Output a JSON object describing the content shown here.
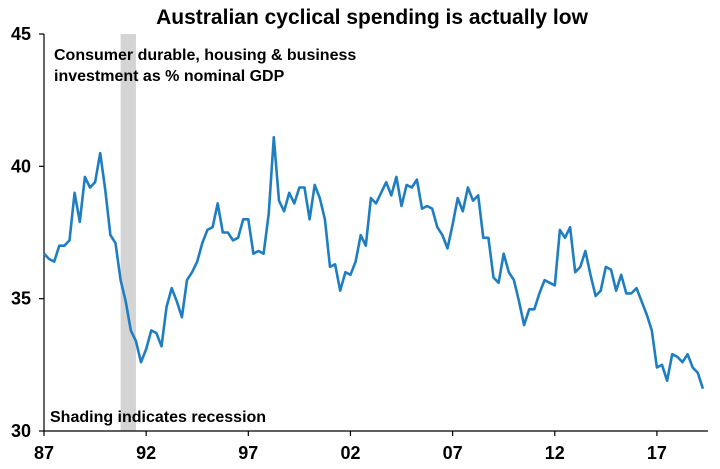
{
  "chart_data": {
    "type": "line",
    "title": "Australian cyclical spending is actually low",
    "subtitle_lines": [
      "Consumer durable, housing & business",
      "investment as %  nominal GDP"
    ],
    "xlabel": "",
    "ylabel": "",
    "x_ticks": [
      "87",
      "92",
      "97",
      "02",
      "07",
      "12",
      "17"
    ],
    "x_tick_years": [
      1987,
      1992,
      1997,
      2002,
      2007,
      2012,
      2017
    ],
    "xlim": [
      1987,
      2019.5
    ],
    "ylim": [
      30,
      45
    ],
    "y_ticks": [
      30,
      35,
      40,
      45
    ],
    "grid": false,
    "recession_band": [
      1990.75,
      1991.5
    ],
    "annotation": "Shading indicates recession",
    "line_color": "#1f7ec2",
    "shade_color": "#d4d4d4",
    "series": [
      {
        "name": "",
        "x": [
          1987.0,
          1987.25,
          1987.5,
          1987.75,
          1988.0,
          1988.25,
          1988.5,
          1988.75,
          1989.0,
          1989.25,
          1989.5,
          1989.75,
          1990.0,
          1990.25,
          1990.5,
          1990.75,
          1991.0,
          1991.25,
          1991.5,
          1991.75,
          1992.0,
          1992.25,
          1992.5,
          1992.75,
          1993.0,
          1993.25,
          1993.5,
          1993.75,
          1994.0,
          1994.25,
          1994.5,
          1994.75,
          1995.0,
          1995.25,
          1995.5,
          1995.75,
          1996.0,
          1996.25,
          1996.5,
          1996.75,
          1997.0,
          1997.25,
          1997.5,
          1997.75,
          1998.0,
          1998.25,
          1998.5,
          1998.75,
          1999.0,
          1999.25,
          1999.5,
          1999.75,
          2000.0,
          2000.25,
          2000.5,
          2000.75,
          2001.0,
          2001.25,
          2001.5,
          2001.75,
          2002.0,
          2002.25,
          2002.5,
          2002.75,
          2003.0,
          2003.25,
          2003.5,
          2003.75,
          2004.0,
          2004.25,
          2004.5,
          2004.75,
          2005.0,
          2005.25,
          2005.5,
          2005.75,
          2006.0,
          2006.25,
          2006.5,
          2006.75,
          2007.0,
          2007.25,
          2007.5,
          2007.75,
          2008.0,
          2008.25,
          2008.5,
          2008.75,
          2009.0,
          2009.25,
          2009.5,
          2009.75,
          2010.0,
          2010.25,
          2010.5,
          2010.75,
          2011.0,
          2011.25,
          2011.5,
          2011.75,
          2012.0,
          2012.25,
          2012.5,
          2012.75,
          2013.0,
          2013.25,
          2013.5,
          2013.75,
          2014.0,
          2014.25,
          2014.5,
          2014.75,
          2015.0,
          2015.25,
          2015.5,
          2015.75,
          2016.0,
          2016.25,
          2016.5,
          2016.75,
          2017.0,
          2017.25,
          2017.5,
          2017.75,
          2018.0,
          2018.25,
          2018.5,
          2018.75,
          2019.0,
          2019.25
        ],
        "values": [
          36.7,
          36.5,
          36.4,
          37.0,
          37.0,
          37.2,
          39.0,
          37.9,
          39.6,
          39.2,
          39.4,
          40.5,
          39.1,
          37.4,
          37.1,
          35.7,
          34.9,
          33.8,
          33.4,
          32.6,
          33.1,
          33.8,
          33.7,
          33.2,
          34.7,
          35.4,
          34.9,
          34.3,
          35.7,
          36.0,
          36.4,
          37.1,
          37.6,
          37.7,
          38.6,
          37.5,
          37.5,
          37.2,
          37.3,
          38.0,
          38.0,
          36.7,
          36.8,
          36.7,
          38.2,
          41.1,
          38.7,
          38.3,
          39.0,
          38.6,
          39.2,
          39.2,
          38.0,
          39.3,
          38.8,
          38.0,
          36.2,
          36.3,
          35.3,
          36.0,
          35.9,
          36.4,
          37.4,
          37.0,
          38.8,
          38.6,
          39.0,
          39.4,
          38.9,
          39.6,
          38.5,
          39.3,
          39.2,
          39.5,
          38.4,
          38.5,
          38.4,
          37.7,
          37.4,
          36.9,
          37.8,
          38.8,
          38.3,
          39.2,
          38.7,
          38.9,
          37.3,
          37.3,
          35.8,
          35.6,
          36.7,
          36.0,
          35.7,
          34.9,
          34.0,
          34.6,
          34.6,
          35.2,
          35.7,
          35.6,
          35.5,
          37.6,
          37.3,
          37.7,
          36.0,
          36.2,
          36.8,
          35.9,
          35.1,
          35.3,
          36.2,
          36.1,
          35.3,
          35.9,
          35.2,
          35.2,
          35.4,
          34.9,
          34.4,
          33.8,
          32.4,
          32.5,
          31.9,
          32.9,
          32.8,
          32.6,
          32.9,
          32.4,
          32.2,
          31.6
        ]
      }
    ]
  }
}
